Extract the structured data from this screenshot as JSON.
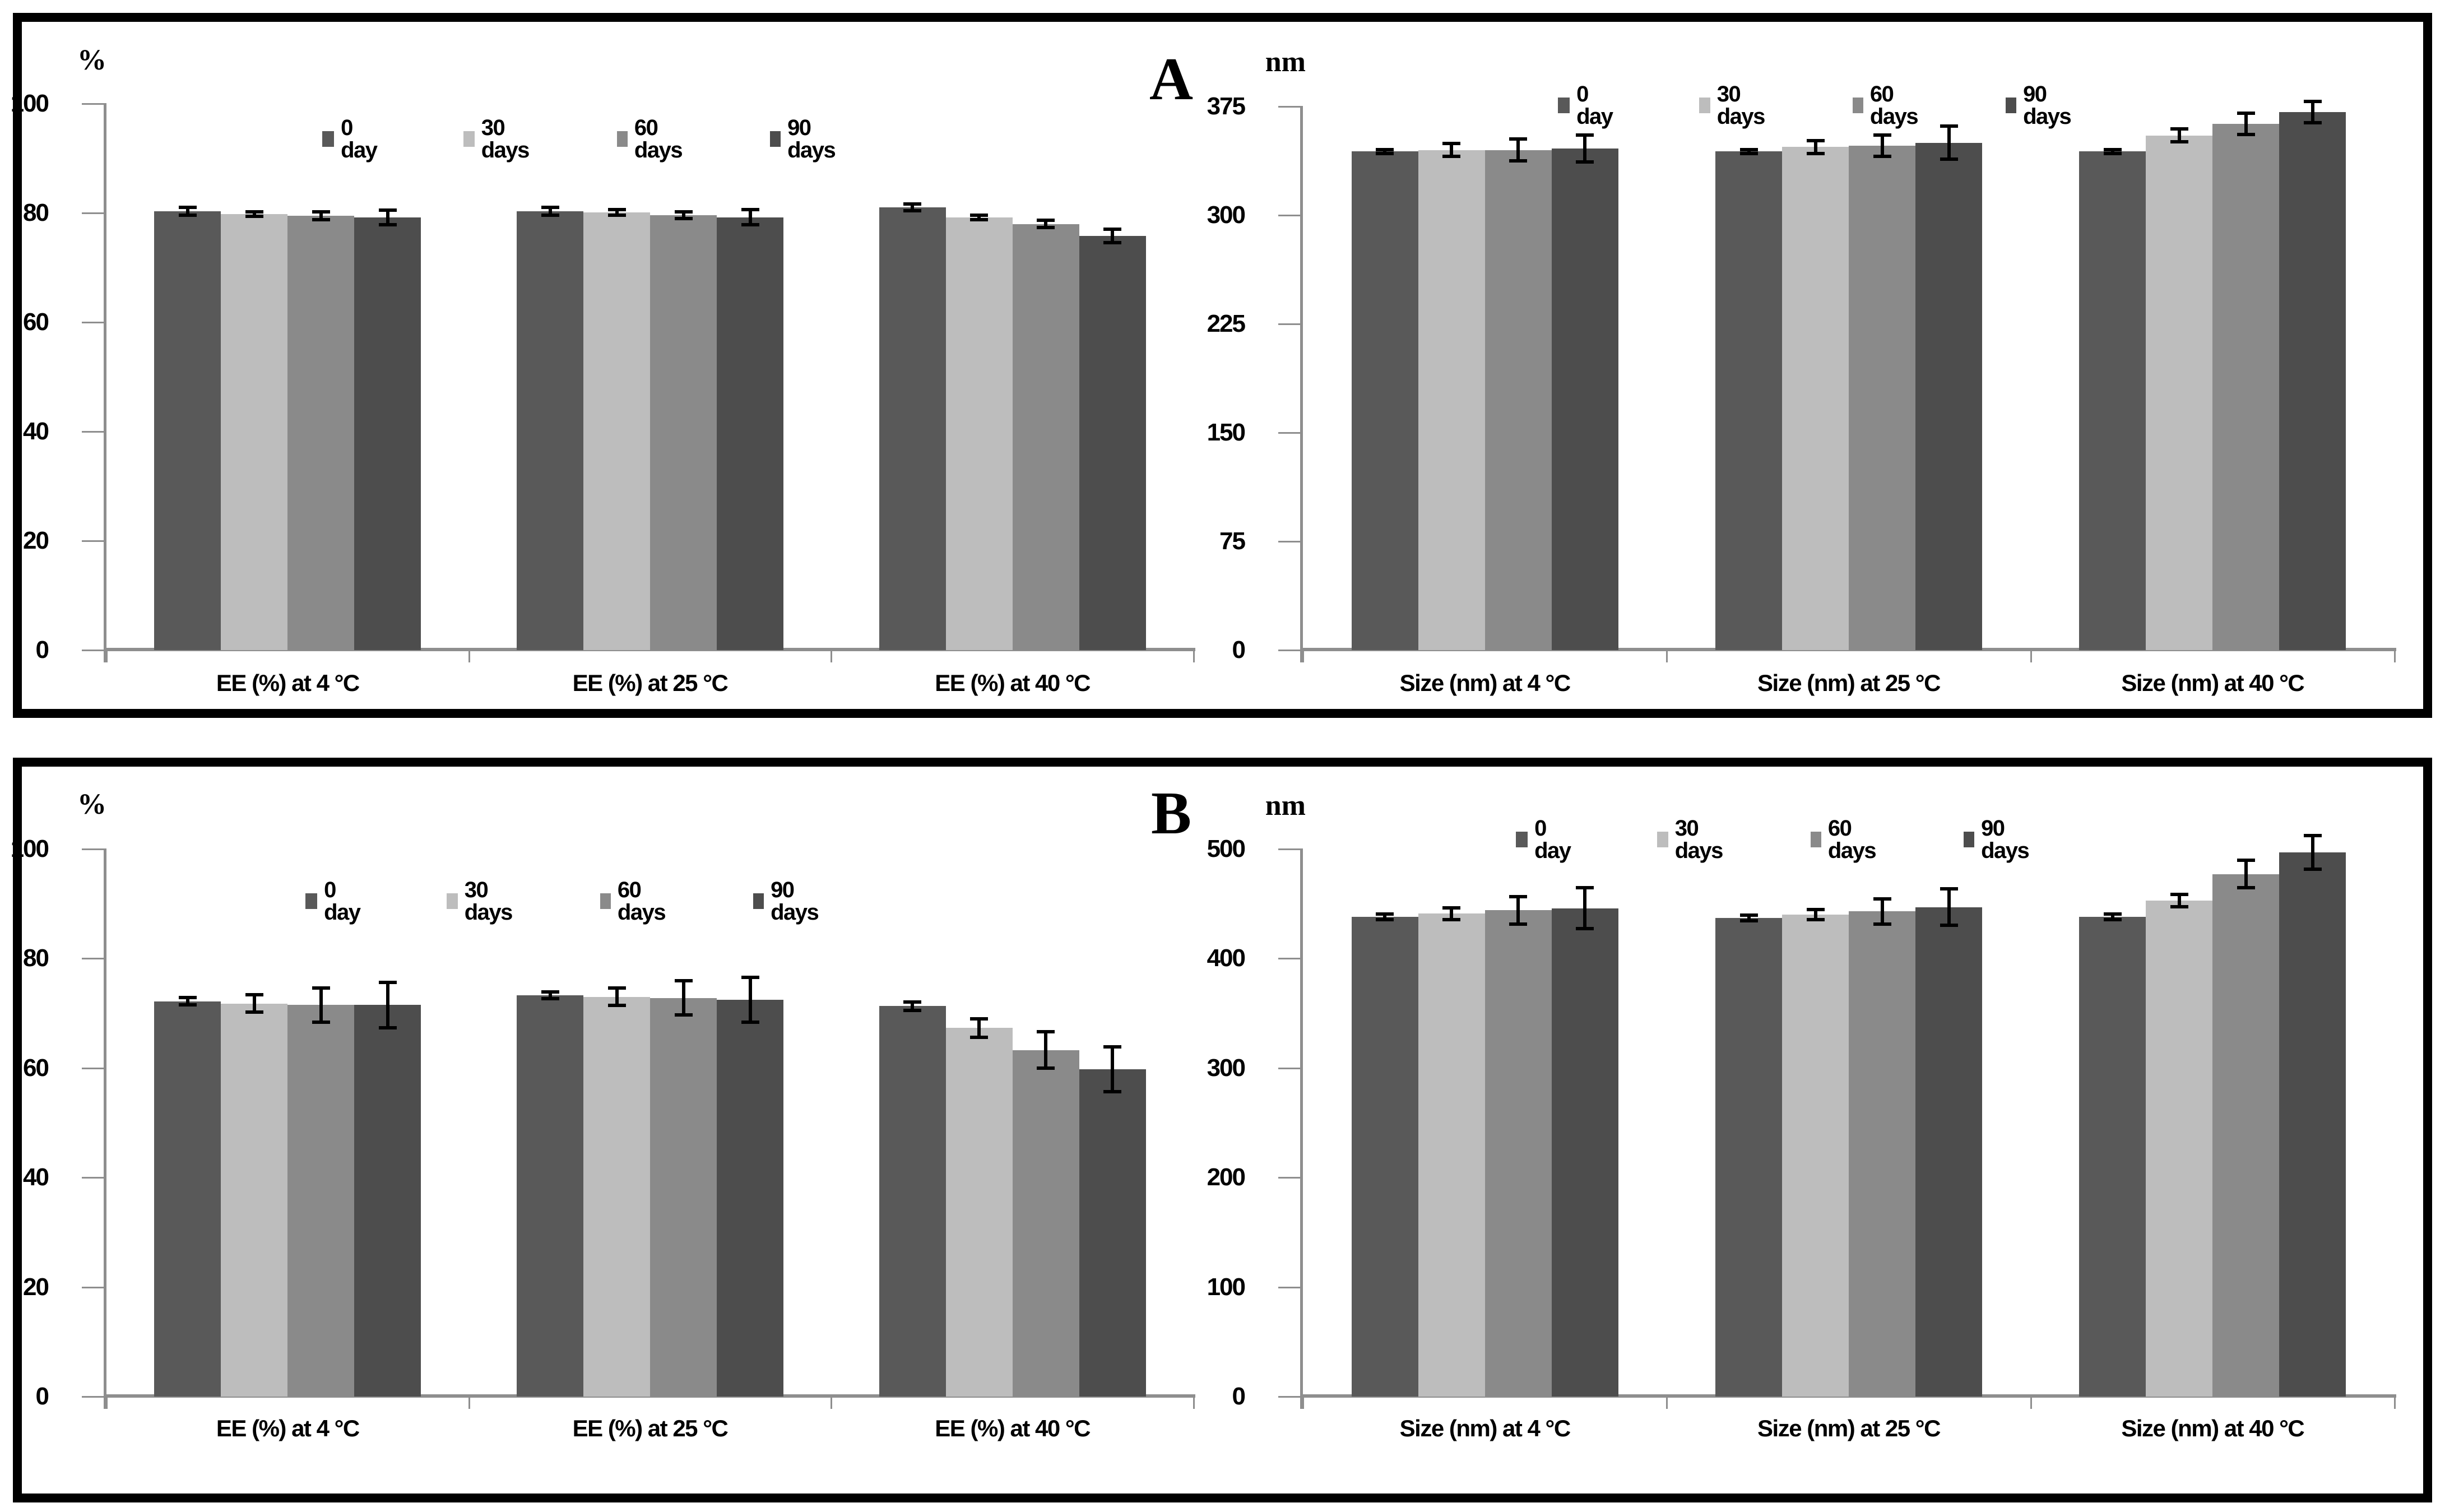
{
  "panel_labels": [
    "A",
    "B"
  ],
  "colors": {
    "series": [
      "#595959",
      "#bdbdbd",
      "#8a8a8a",
      "#4d4d4d"
    ],
    "axis": "#8e8e8e",
    "error_bar": "#000000",
    "frame": "#000000",
    "background": "#ffffff",
    "text": "#000000"
  },
  "legend_labels": [
    "0 day",
    "30 days",
    "60 days",
    "90 days"
  ],
  "chart_data": [
    {
      "id": "panel-a-ee",
      "panel": "A",
      "type": "bar",
      "ylabel": "%",
      "ylim": [
        0,
        100
      ],
      "y_ticks": [
        0,
        20,
        40,
        60,
        80,
        100
      ],
      "categories": [
        "EE (%) at 4 °C",
        "EE (%) at 25 °C",
        "EE (%) at 40 °C"
      ],
      "legend_position": "top-center",
      "grid": false,
      "series": [
        {
          "name": "0 day",
          "values": [
            80.3,
            80.3,
            81.0
          ],
          "errors": [
            0.6,
            0.6,
            0.5
          ]
        },
        {
          "name": "30 days",
          "values": [
            79.8,
            80.1,
            79.2
          ],
          "errors": [
            0.3,
            0.4,
            0.3
          ]
        },
        {
          "name": "60 days",
          "values": [
            79.5,
            79.6,
            78.0
          ],
          "errors": [
            0.6,
            0.5,
            0.6
          ]
        },
        {
          "name": "90 days",
          "values": [
            79.2,
            79.2,
            75.8
          ],
          "errors": [
            1.2,
            1.3,
            1.1
          ]
        }
      ]
    },
    {
      "id": "panel-a-size",
      "panel": "A",
      "type": "bar",
      "ylabel": "nm",
      "ylim": [
        0,
        375
      ],
      "y_ticks": [
        0,
        75,
        150,
        225,
        300,
        375
      ],
      "categories": [
        "Size (nm) at 4 °C",
        "Size (nm) at 25 °C",
        "Size (nm) at 40 °C"
      ],
      "legend_position": "top-center",
      "grid": false,
      "series": [
        {
          "name": "0 day",
          "values": [
            344,
            344,
            344
          ],
          "errors": [
            1,
            1,
            1
          ]
        },
        {
          "name": "30 days",
          "values": [
            345,
            347,
            355
          ],
          "errors": [
            4,
            4,
            4
          ]
        },
        {
          "name": "60 days",
          "values": [
            345,
            348,
            363
          ],
          "errors": [
            7,
            7,
            7
          ]
        },
        {
          "name": "90 days",
          "values": [
            346,
            350,
            371
          ],
          "errors": [
            9,
            11,
            7
          ]
        }
      ]
    },
    {
      "id": "panel-b-ee",
      "panel": "B",
      "type": "bar",
      "ylabel": "%",
      "ylim": [
        0,
        100
      ],
      "y_ticks": [
        0,
        20,
        40,
        60,
        80,
        100
      ],
      "categories": [
        "EE (%) at 4 °C",
        "EE (%) at 25 °C",
        "EE (%) at 40 °C"
      ],
      "legend_position": "top-center",
      "grid": false,
      "series": [
        {
          "name": "0 day",
          "values": [
            72.2,
            73.3,
            71.3
          ],
          "errors": [
            0.6,
            0.5,
            0.7
          ]
        },
        {
          "name": "30 days",
          "values": [
            71.8,
            73.0,
            67.3
          ],
          "errors": [
            1.5,
            1.5,
            1.6
          ]
        },
        {
          "name": "60 days",
          "values": [
            71.5,
            72.8,
            63.3
          ],
          "errors": [
            3.0,
            3.0,
            3.2
          ]
        },
        {
          "name": "90 days",
          "values": [
            71.5,
            72.5,
            59.8
          ],
          "errors": [
            4.0,
            4.0,
            4.0
          ]
        }
      ]
    },
    {
      "id": "panel-b-size",
      "panel": "B",
      "type": "bar",
      "ylabel": "nm",
      "ylim": [
        0,
        500
      ],
      "y_ticks": [
        0,
        100,
        200,
        300,
        400,
        500
      ],
      "categories": [
        "Size (nm) at 4 °C",
        "Size (nm) at 25 °C",
        "Size (nm) at 40 °C"
      ],
      "legend_position": "top-center",
      "grid": false,
      "series": [
        {
          "name": "0 day",
          "values": [
            438,
            437,
            438
          ],
          "errors": [
            2,
            2,
            2
          ]
        },
        {
          "name": "30 days",
          "values": [
            441,
            440,
            453
          ],
          "errors": [
            5,
            4,
            5
          ]
        },
        {
          "name": "60 days",
          "values": [
            444,
            443,
            477
          ],
          "errors": [
            12,
            11,
            12
          ]
        },
        {
          "name": "90 days",
          "values": [
            446,
            447,
            497
          ],
          "errors": [
            18,
            16,
            15
          ]
        }
      ]
    }
  ]
}
